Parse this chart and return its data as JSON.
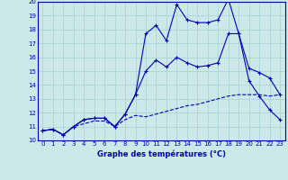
{
  "xlabel": "Graphe des températures (°C)",
  "xlim": [
    -0.5,
    23.5
  ],
  "ylim": [
    10,
    20
  ],
  "yticks": [
    10,
    11,
    12,
    13,
    14,
    15,
    16,
    17,
    18,
    19,
    20
  ],
  "xticks": [
    0,
    1,
    2,
    3,
    4,
    5,
    6,
    7,
    8,
    9,
    10,
    11,
    12,
    13,
    14,
    15,
    16,
    17,
    18,
    19,
    20,
    21,
    22,
    23
  ],
  "background_color": "#cce8e8",
  "grid_color": "#aad4d4",
  "line_color": "#0000bb",
  "line1_x": [
    0,
    1,
    2,
    3,
    4,
    5,
    6,
    7,
    8,
    9,
    10,
    11,
    12,
    13,
    14,
    15,
    16,
    17,
    18,
    19,
    20,
    21,
    22,
    23
  ],
  "line1_y": [
    10.7,
    10.8,
    10.4,
    11.0,
    11.5,
    11.6,
    11.6,
    11.0,
    11.9,
    13.3,
    17.7,
    18.3,
    17.2,
    19.8,
    18.7,
    18.5,
    18.5,
    18.7,
    20.2,
    17.7,
    15.2,
    14.9,
    14.5,
    13.3
  ],
  "line2_x": [
    0,
    1,
    2,
    3,
    4,
    5,
    6,
    7,
    8,
    9,
    10,
    11,
    12,
    13,
    14,
    15,
    16,
    17,
    18,
    19,
    20,
    21,
    22,
    23
  ],
  "line2_y": [
    10.7,
    10.8,
    10.4,
    11.0,
    11.5,
    11.6,
    11.6,
    11.0,
    11.9,
    13.3,
    15.0,
    15.8,
    15.3,
    16.0,
    15.6,
    15.3,
    15.4,
    15.6,
    17.7,
    17.7,
    14.3,
    13.2,
    12.2,
    11.5
  ],
  "line3_x": [
    0,
    1,
    2,
    3,
    4,
    5,
    6,
    7,
    8,
    9,
    10,
    11,
    12,
    13,
    14,
    15,
    16,
    17,
    18,
    19,
    20,
    21,
    22,
    23
  ],
  "line3_y": [
    10.7,
    10.8,
    10.4,
    11.0,
    11.2,
    11.4,
    11.4,
    11.0,
    11.5,
    11.8,
    11.7,
    11.9,
    12.1,
    12.3,
    12.5,
    12.6,
    12.8,
    13.0,
    13.2,
    13.3,
    13.3,
    13.3,
    13.2,
    13.3
  ]
}
